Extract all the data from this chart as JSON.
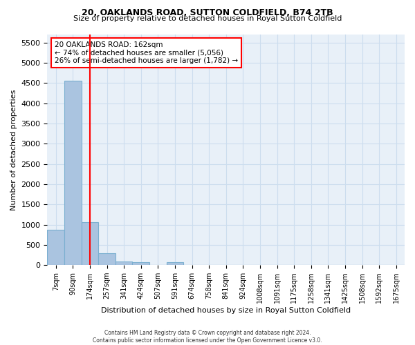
{
  "title1": "20, OAKLANDS ROAD, SUTTON COLDFIELD, B74 2TB",
  "title2": "Size of property relative to detached houses in Royal Sutton Coldfield",
  "xlabel": "Distribution of detached houses by size in Royal Sutton Coldfield",
  "ylabel": "Number of detached properties",
  "footer1": "Contains HM Land Registry data © Crown copyright and database right 2024.",
  "footer2": "Contains public sector information licensed under the Open Government Licence v3.0.",
  "annotation_title": "20 OAKLANDS ROAD: 162sqm",
  "annotation_line2": "← 74% of detached houses are smaller (5,056)",
  "annotation_line3": "26% of semi-detached houses are larger (1,782) →",
  "bar_labels": [
    "7sqm",
    "90sqm",
    "174sqm",
    "257sqm",
    "341sqm",
    "424sqm",
    "507sqm",
    "591sqm",
    "674sqm",
    "758sqm",
    "841sqm",
    "924sqm",
    "1008sqm",
    "1091sqm",
    "1175sqm",
    "1258sqm",
    "1341sqm",
    "1425sqm",
    "1508sqm",
    "1592sqm",
    "1675sqm"
  ],
  "bar_values": [
    880,
    4560,
    1060,
    290,
    90,
    80,
    0,
    70,
    0,
    0,
    0,
    0,
    0,
    0,
    0,
    0,
    0,
    0,
    0,
    0,
    0
  ],
  "bar_color": "#aac4e0",
  "bar_edgecolor": "#7aafd0",
  "grid_color": "#ccddee",
  "background_color": "#e8f0f8",
  "red_line_x": 2,
  "ylim": [
    0,
    5700
  ],
  "yticks": [
    0,
    500,
    1000,
    1500,
    2000,
    2500,
    3000,
    3500,
    4000,
    4500,
    5000,
    5500
  ]
}
